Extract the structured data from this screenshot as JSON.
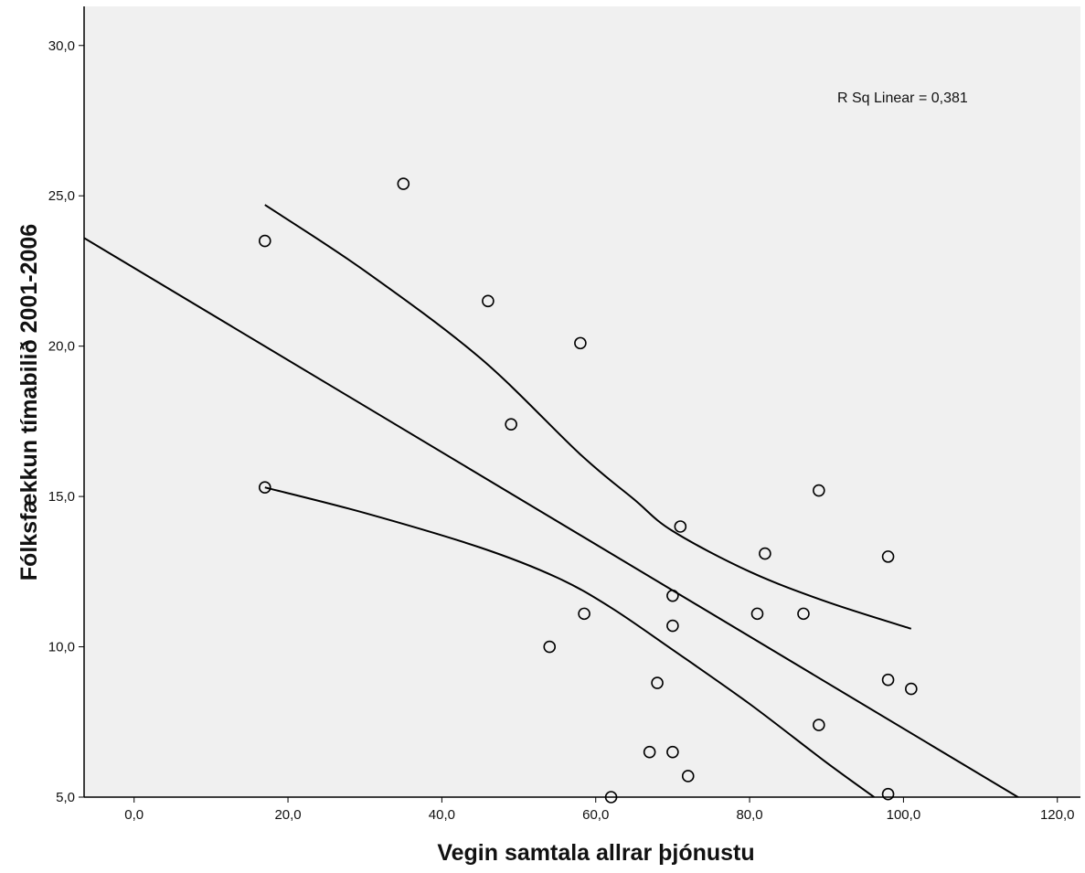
{
  "chart_data": {
    "type": "scatter",
    "xlabel": "Vegin samtala allrar þjónustu",
    "ylabel": "Fólksfækkun tímabilið 2001-2006",
    "annotation": "R Sq Linear = 0,381",
    "xlim": [
      -6.5,
      123
    ],
    "ylim": [
      5.0,
      31.3
    ],
    "x_ticks": [
      "0,0",
      "20,0",
      "40,0",
      "60,0",
      "80,0",
      "100,0",
      "120,0"
    ],
    "x_tick_values": [
      0,
      20,
      40,
      60,
      80,
      100,
      120
    ],
    "y_ticks": [
      "5,0",
      "10,0",
      "15,0",
      "20,0",
      "25,0",
      "30,0"
    ],
    "y_tick_values": [
      5,
      10,
      15,
      20,
      25,
      30
    ],
    "grid": false,
    "plot_background": "#f0f0f0",
    "axis_color": "#000000",
    "marker_color": "#000000",
    "points": [
      {
        "x": 17,
        "y": 23.5
      },
      {
        "x": 17,
        "y": 15.3
      },
      {
        "x": 35,
        "y": 25.4
      },
      {
        "x": 46,
        "y": 21.5
      },
      {
        "x": 49,
        "y": 17.4
      },
      {
        "x": 54,
        "y": 10.0
      },
      {
        "x": 58,
        "y": 20.1
      },
      {
        "x": 58.5,
        "y": 11.1
      },
      {
        "x": 62,
        "y": 5.0
      },
      {
        "x": 67,
        "y": 6.5
      },
      {
        "x": 68,
        "y": 8.8
      },
      {
        "x": 70,
        "y": 11.7
      },
      {
        "x": 70,
        "y": 10.7
      },
      {
        "x": 70,
        "y": 6.5
      },
      {
        "x": 71,
        "y": 14.0
      },
      {
        "x": 72,
        "y": 5.7
      },
      {
        "x": 81,
        "y": 11.1
      },
      {
        "x": 82,
        "y": 13.1
      },
      {
        "x": 87,
        "y": 11.1
      },
      {
        "x": 89,
        "y": 15.2
      },
      {
        "x": 89,
        "y": 7.4
      },
      {
        "x": 98,
        "y": 13.0
      },
      {
        "x": 98,
        "y": 8.9
      },
      {
        "x": 98,
        "y": 5.1
      },
      {
        "x": 101,
        "y": 8.6
      }
    ],
    "fit_line": {
      "intercept": 22.6,
      "slope": -0.1532
    },
    "ci_upper": [
      {
        "x": 17,
        "y": 24.7
      },
      {
        "x": 30,
        "y": 22.5
      },
      {
        "x": 45,
        "y": 19.6
      },
      {
        "x": 58,
        "y": 16.4
      },
      {
        "x": 65,
        "y": 14.9
      },
      {
        "x": 70,
        "y": 13.85
      },
      {
        "x": 80,
        "y": 12.5
      },
      {
        "x": 90,
        "y": 11.5
      },
      {
        "x": 101,
        "y": 10.6
      }
    ],
    "ci_lower": [
      {
        "x": 17,
        "y": 15.3
      },
      {
        "x": 30,
        "y": 14.45
      },
      {
        "x": 45,
        "y": 13.3
      },
      {
        "x": 55,
        "y": 12.3
      },
      {
        "x": 62,
        "y": 11.3
      },
      {
        "x": 70,
        "y": 9.9
      },
      {
        "x": 80,
        "y": 8.1
      },
      {
        "x": 90,
        "y": 6.15
      },
      {
        "x": 96.2,
        "y": 5.0
      }
    ]
  }
}
